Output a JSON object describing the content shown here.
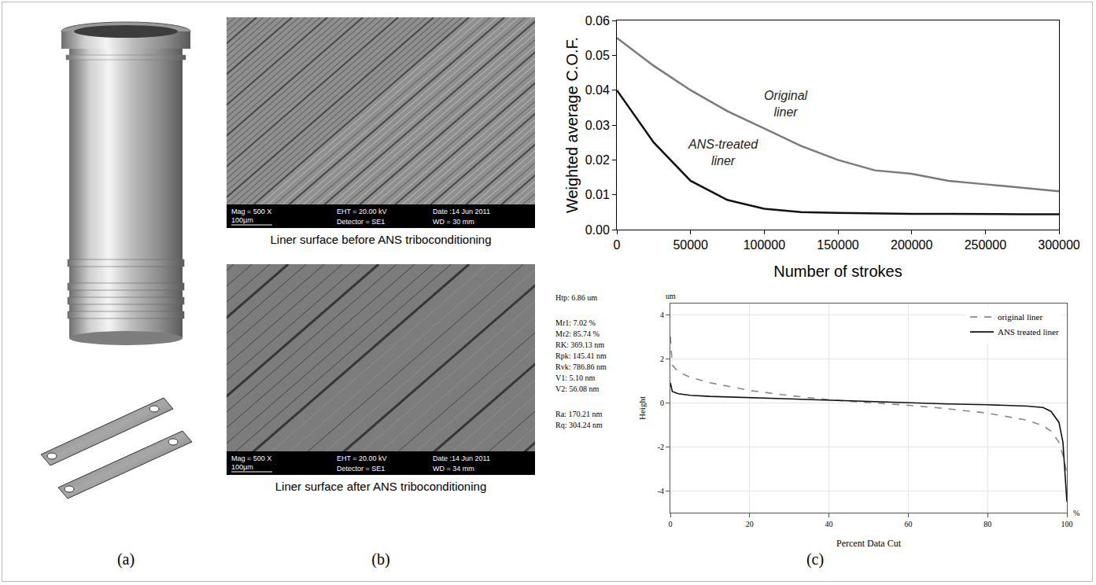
{
  "panel_labels": [
    "(a)",
    "(b)",
    "(c)"
  ],
  "sem_images": [
    {
      "caption": "Liner surface before ANS triboconditioning",
      "info": [
        "Mag =  500 X",
        "EHT = 20.00 kV",
        "Date :14 Jun 2011",
        "Detector = SE1",
        "WD = 30 mm"
      ],
      "scale": "100µm"
    },
    {
      "caption": "Liner surface after ANS triboconditioning",
      "info": [
        "Mag =  500 X",
        "EHT = 20.00 kV",
        "Date :14 Jun 2011",
        "Detector = SE1",
        "WD =  34 mm"
      ],
      "scale": "100µm"
    }
  ],
  "stats": [
    "Htp: 6.86 um",
    "Mr1: 7.02 %",
    "Mr2: 85.74 %",
    "RK: 369.13 nm",
    "Rpk: 145.41 nm",
    "Rvk: 786.86 nm",
    "V1: 5.10 nm",
    "V2: 56.08 nm",
    "Ra: 170.21 nm",
    "Rq: 304.24 nm"
  ],
  "chart_data": [
    {
      "type": "line",
      "x_label": "Number of strokes",
      "y_label": "Weighted average C.O.F.",
      "x": [
        0,
        25000,
        50000,
        75000,
        100000,
        125000,
        150000,
        175000,
        200000,
        225000,
        250000,
        275000,
        300000
      ],
      "series": [
        {
          "name": "Original liner",
          "color": "#7a7a7a",
          "line_style": "solid",
          "values": [
            0.055,
            0.047,
            0.04,
            0.034,
            0.029,
            0.024,
            0.02,
            0.017,
            0.016,
            0.014,
            0.013,
            0.012,
            0.011
          ]
        },
        {
          "name": "ANS-treated liner",
          "color": "#111111",
          "line_style": "solid",
          "values": [
            0.04,
            0.025,
            0.014,
            0.0085,
            0.006,
            0.005,
            0.0048,
            0.0046,
            0.0045,
            0.0045,
            0.0044,
            0.0044,
            0.0044
          ]
        }
      ],
      "xlim": [
        0,
        300000
      ],
      "xticks": [
        0,
        50000,
        100000,
        150000,
        200000,
        250000,
        300000
      ],
      "ylim": [
        0,
        0.06
      ],
      "yticks": [
        {
          "value": 0,
          "label": "0.00"
        },
        {
          "value": 0.01,
          "label": "0.01"
        },
        {
          "value": 0.02,
          "label": "0.02"
        },
        {
          "value": 0.03,
          "label": "0.03"
        },
        {
          "value": 0.04,
          "label": "0.04"
        },
        {
          "value": 0.05,
          "label": "0.05"
        },
        {
          "value": 0.06,
          "label": "0.06"
        }
      ],
      "grid": false
    },
    {
      "type": "line",
      "x_label": "Percent Data Cut",
      "y_label": "Height",
      "annotations": [
        {
          "text": "um"
        },
        {
          "text": "%"
        }
      ],
      "x": [
        0,
        0.5,
        2,
        5,
        10,
        20,
        30,
        40,
        50,
        60,
        70,
        80,
        90,
        94,
        96,
        98,
        99,
        100
      ],
      "series": [
        {
          "name": "original liner",
          "color": "#888888",
          "line_style": "dashed",
          "values": [
            3.0,
            1.7,
            1.4,
            1.15,
            0.9,
            0.55,
            0.32,
            0.13,
            0.0,
            -0.12,
            -0.28,
            -0.48,
            -0.8,
            -1.05,
            -1.3,
            -1.8,
            -2.4,
            -3.2
          ]
        },
        {
          "name": "ANS treated liner",
          "color": "#111111",
          "line_style": "solid",
          "values": [
            0.9,
            0.5,
            0.4,
            0.33,
            0.28,
            0.22,
            0.16,
            0.1,
            0.04,
            -0.02,
            -0.06,
            -0.1,
            -0.16,
            -0.22,
            -0.4,
            -0.9,
            -1.8,
            -4.5
          ]
        }
      ],
      "xlim": [
        0,
        100
      ],
      "xticks": [
        0,
        20,
        40,
        60,
        80,
        100
      ],
      "ylim": [
        -5,
        4.5
      ],
      "yticks": [
        -4,
        -2,
        0,
        2,
        4
      ],
      "grid": true,
      "legend": "top-right"
    }
  ]
}
